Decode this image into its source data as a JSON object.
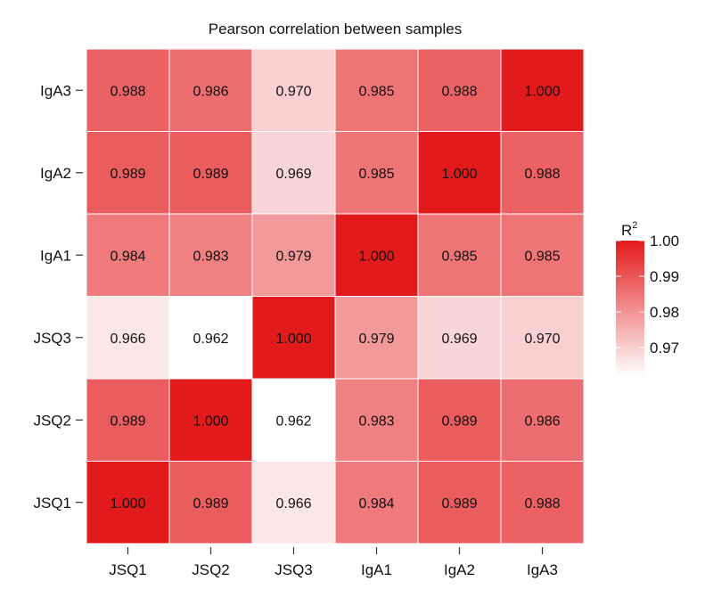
{
  "chart_data": {
    "type": "heatmap",
    "title": "Pearson correlation between samples",
    "x_categories": [
      "JSQ1",
      "JSQ2",
      "JSQ3",
      "IgA1",
      "IgA2",
      "IgA3"
    ],
    "y_categories": [
      "JSQ1",
      "JSQ2",
      "JSQ3",
      "IgA1",
      "IgA2",
      "IgA3"
    ],
    "values": [
      [
        1.0,
        0.989,
        0.966,
        0.984,
        0.989,
        0.988
      ],
      [
        0.989,
        1.0,
        0.962,
        0.983,
        0.989,
        0.986
      ],
      [
        0.966,
        0.962,
        1.0,
        0.979,
        0.969,
        0.97
      ],
      [
        0.984,
        0.983,
        0.979,
        1.0,
        0.985,
        0.985
      ],
      [
        0.989,
        0.989,
        0.969,
        0.985,
        1.0,
        0.988
      ],
      [
        0.988,
        0.986,
        0.97,
        0.985,
        0.988,
        1.0
      ]
    ],
    "value_format_decimals": 3,
    "color_scale": {
      "min": 0.962,
      "max": 1.0,
      "low_color": "#ffffff",
      "high_color": "#e31a1c"
    },
    "legend": {
      "title": "R",
      "title_superscript": "2",
      "ticks": [
        1.0,
        0.99,
        0.98,
        0.97
      ],
      "tick_labels": [
        "1.00",
        "0.99",
        "0.98",
        "0.97"
      ],
      "placement": "right"
    }
  }
}
